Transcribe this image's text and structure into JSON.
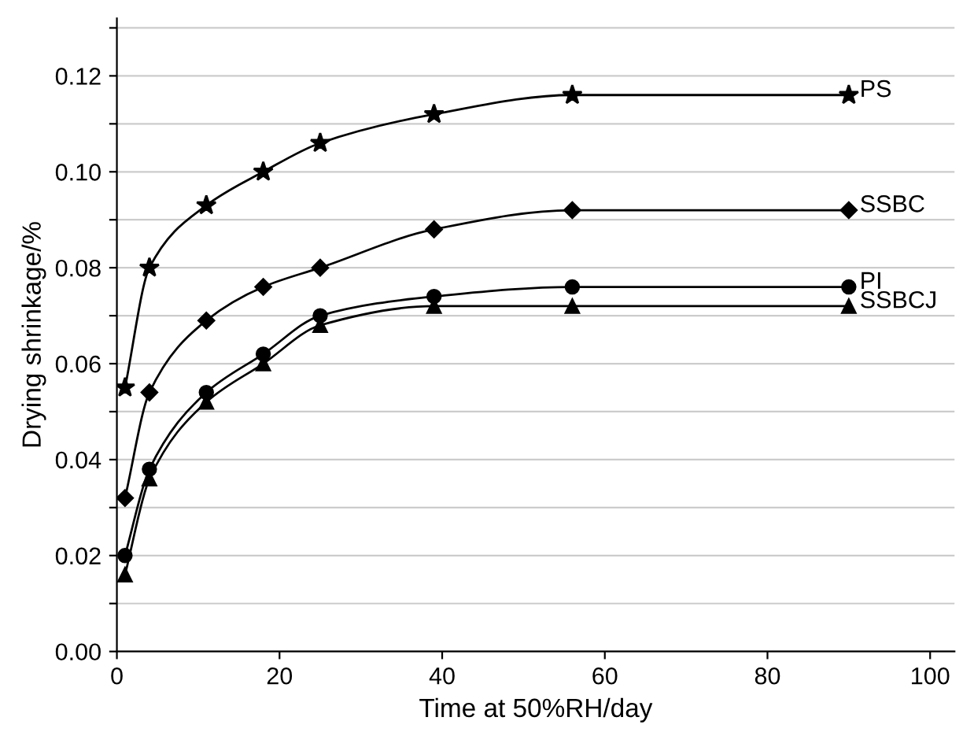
{
  "chart_data": {
    "type": "line",
    "xlabel": "Time at 50%RH/day",
    "ylabel": "Drying shrinkage/%",
    "x": [
      1,
      4,
      11,
      18,
      25,
      39,
      56,
      90
    ],
    "series": [
      {
        "name": "PS",
        "color": "#000000",
        "marker": "star",
        "values": [
          0.055,
          0.08,
          0.093,
          0.1,
          0.106,
          0.112,
          0.116,
          0.116
        ]
      },
      {
        "name": "SSBC",
        "color": "#000000",
        "marker": "diamond",
        "values": [
          0.032,
          0.054,
          0.069,
          0.076,
          0.08,
          0.088,
          0.092,
          0.092
        ]
      },
      {
        "name": "PI",
        "color": "#000000",
        "marker": "circle",
        "values": [
          0.02,
          0.038,
          0.054,
          0.062,
          0.07,
          0.074,
          0.076,
          0.076
        ]
      },
      {
        "name": "SSBCJ",
        "color": "#000000",
        "marker": "triangle",
        "values": [
          0.016,
          0.036,
          0.052,
          0.06,
          0.068,
          0.072,
          0.072,
          0.072
        ]
      }
    ],
    "xlim": [
      0,
      103
    ],
    "xticks": [
      0,
      20,
      40,
      60,
      80,
      100
    ],
    "ylim": [
      0,
      0.132
    ],
    "yticks": [
      {
        "value": 0,
        "label": "0.00"
      },
      {
        "value": 0.01,
        "label": null
      },
      {
        "value": 0.02,
        "label": "0.02"
      },
      {
        "value": 0.03,
        "label": null
      },
      {
        "value": 0.04,
        "label": "0.04"
      },
      {
        "value": 0.05,
        "label": null
      },
      {
        "value": 0.06,
        "label": "0.06"
      },
      {
        "value": 0.07,
        "label": null
      },
      {
        "value": 0.08,
        "label": "0.08"
      },
      {
        "value": 0.09,
        "label": null
      },
      {
        "value": 0.1,
        "label": "0.10"
      },
      {
        "value": 0.11,
        "label": null
      },
      {
        "value": 0.12,
        "label": "0.12"
      },
      {
        "value": 0.13,
        "label": null
      }
    ],
    "grid": "y",
    "line_style": "solid",
    "legend": false
  }
}
